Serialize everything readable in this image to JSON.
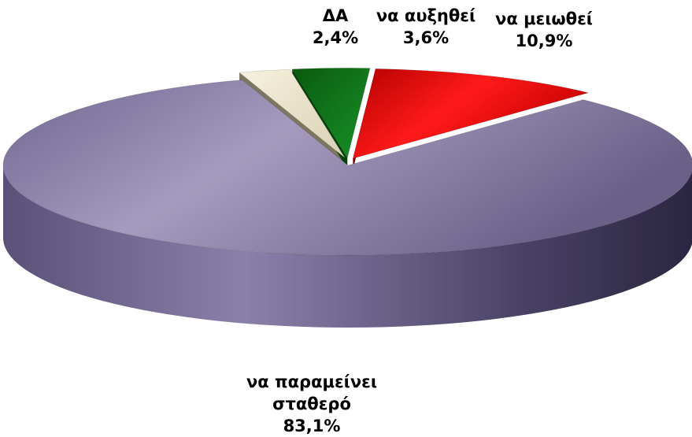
{
  "chart_data": {
    "type": "pie",
    "style": "3d-exploded",
    "slices": [
      {
        "label": "να παραμείνει σταθερό",
        "label_lines": [
          "να παραμείνει",
          "σταθερό"
        ],
        "value": 83.1,
        "value_label": "83,1%",
        "color": "#8a7ea8"
      },
      {
        "label": "ΔΑ",
        "label_lines": [
          "ΔΑ"
        ],
        "value": 2.4,
        "value_label": "2,4%",
        "color": "#ede6cf"
      },
      {
        "label": "να αυξηθεί",
        "label_lines": [
          "να αυξηθεί"
        ],
        "value": 3.6,
        "value_label": "3,6%",
        "color": "#0e6f12"
      },
      {
        "label": "να μειωθεί",
        "label_lines": [
          "να μειωθεί"
        ],
        "value": 10.9,
        "value_label": "10,9%",
        "color": "#e00000"
      }
    ],
    "title": "",
    "legend": "none"
  }
}
